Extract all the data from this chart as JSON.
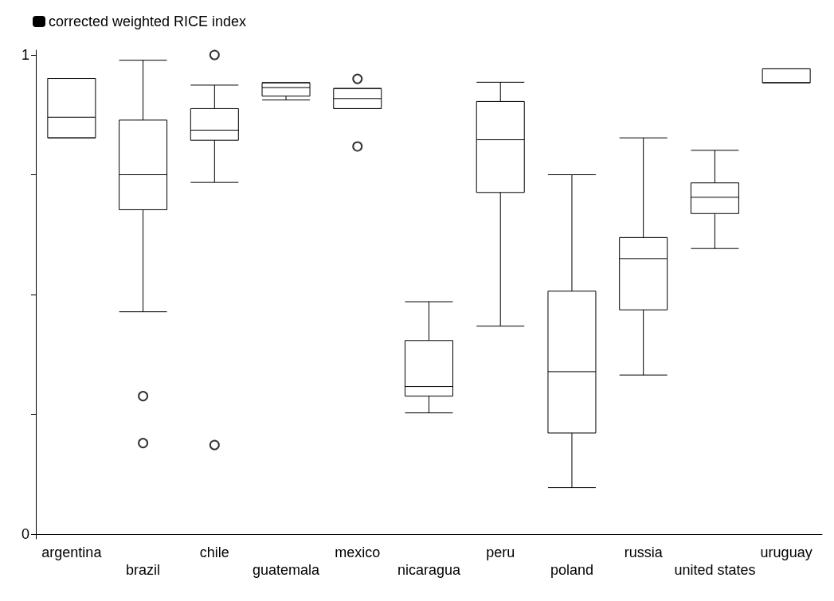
{
  "chart_data": {
    "type": "box",
    "categories": [
      "argentina",
      "brazil",
      "chile",
      "guatemala",
      "mexico",
      "nicaragua",
      "peru",
      "poland",
      "russia",
      "united states",
      "uruguay"
    ],
    "series": [
      {
        "name": "corrected weighted RICE index",
        "color": "#000000",
        "boxes": [
          {
            "low": 0.827,
            "q1": 0.827,
            "median": 0.87,
            "q3": 0.951,
            "high": 0.951
          },
          {
            "low": 0.464,
            "q1": 0.677,
            "median": 0.75,
            "q3": 0.864,
            "high": 0.989,
            "outliers": [
              0.288,
              0.19
            ]
          },
          {
            "low": 0.734,
            "q1": 0.822,
            "median": 0.843,
            "q3": 0.888,
            "high": 0.937,
            "outliers": [
              1.0,
              0.186
            ]
          },
          {
            "low": 0.906,
            "q1": 0.914,
            "median": 0.932,
            "q3": 0.942,
            "high": 0.942
          },
          {
            "low": 0.888,
            "q1": 0.888,
            "median": 0.909,
            "q3": 0.93,
            "high": 0.93,
            "outliers": [
              0.95,
              0.809
            ]
          },
          {
            "low": 0.253,
            "q1": 0.288,
            "median": 0.308,
            "q3": 0.404,
            "high": 0.485
          },
          {
            "low": 0.434,
            "q1": 0.713,
            "median": 0.823,
            "q3": 0.903,
            "high": 0.943
          },
          {
            "low": 0.097,
            "q1": 0.211,
            "median": 0.339,
            "q3": 0.507,
            "high": 0.75
          },
          {
            "low": 0.332,
            "q1": 0.468,
            "median": 0.575,
            "q3": 0.619,
            "high": 0.827
          },
          {
            "low": 0.596,
            "q1": 0.669,
            "median": 0.703,
            "q3": 0.733,
            "high": 0.801
          },
          {
            "low": 0.942,
            "q1": 0.942,
            "median": 0.971,
            "q3": 0.971,
            "high": 0.971
          }
        ]
      }
    ],
    "ylim": [
      -0.01,
      1.01
    ],
    "yticks": [
      0,
      {
        "value": 0.25,
        "label": null
      },
      {
        "value": 0.5,
        "label": null
      },
      {
        "value": 0.75,
        "label": null
      },
      1
    ],
    "grid": false,
    "legend": "top left"
  }
}
